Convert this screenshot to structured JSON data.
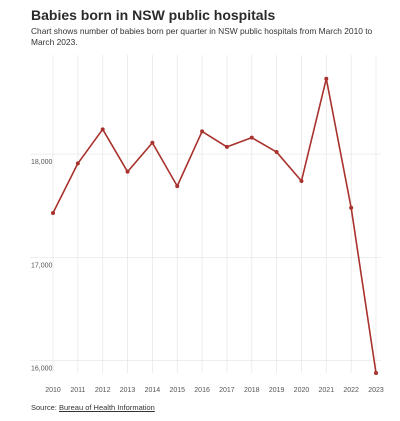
{
  "chart_data": {
    "type": "line",
    "title": "Babies born in NSW public hospitals",
    "subtitle": "Chart shows number of babies born per quarter in NSW public hospitals from March 2010 to March 2023.",
    "xlabel": "",
    "ylabel": "",
    "x": [
      "2010",
      "2011",
      "2012",
      "2013",
      "2014",
      "2015",
      "2016",
      "2017",
      "2018",
      "2019",
      "2020",
      "2021",
      "2022",
      "2023"
    ],
    "x_ticks": [
      "2010",
      "2011",
      "2012",
      "2013",
      "2014",
      "2015",
      "2016",
      "2017",
      "2018",
      "2019",
      "2020",
      "2021",
      "2022",
      "2023"
    ],
    "series": [
      {
        "name": "",
        "values": [
          17430,
          17910,
          18240,
          17830,
          18110,
          17690,
          18220,
          18070,
          18160,
          18020,
          17740,
          18730,
          17480,
          15880
        ]
      }
    ],
    "y_ticks": [
      16000,
      17000,
      18000
    ],
    "y_tick_labels": [
      "16,000",
      "17,000",
      "18,000"
    ],
    "ylim": [
      15880,
      18960
    ],
    "grid": true,
    "line_color": "#a8322d",
    "grid_color": "#e8e8e8"
  },
  "source": {
    "label": "Source: ",
    "link_text": "Bureau of Health Information"
  }
}
